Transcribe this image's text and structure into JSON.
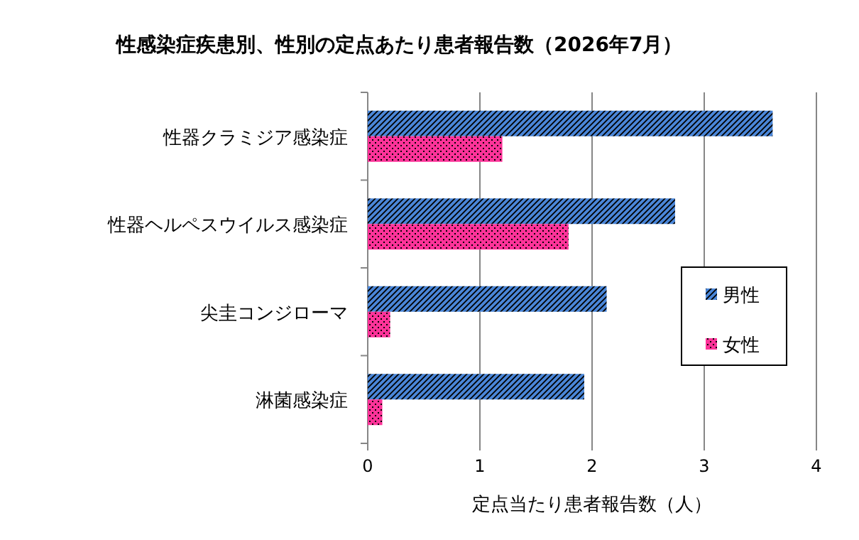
{
  "chart_data": {
    "type": "bar",
    "orientation": "horizontal",
    "title": "性感染症疾患別、性別の定点あたり患者報告数（2026年7月）",
    "xlabel": "定点当たり患者報告数（人）",
    "categories": [
      "性器クラミジア感染症",
      "性器ヘルペスウイルス感染症",
      "尖圭コンジローマ",
      "淋菌感染症"
    ],
    "series": [
      {
        "name": "男性",
        "color": "#4a86d8",
        "values": [
          3.61,
          2.74,
          2.13,
          1.93
        ]
      },
      {
        "name": "女性",
        "color": "#ff3399",
        "values": [
          1.2,
          1.79,
          0.2,
          0.13
        ]
      }
    ],
    "xlim": [
      0,
      4
    ],
    "xticks": [
      0,
      1,
      2,
      3,
      4
    ],
    "grid": "x",
    "legend": "right"
  }
}
